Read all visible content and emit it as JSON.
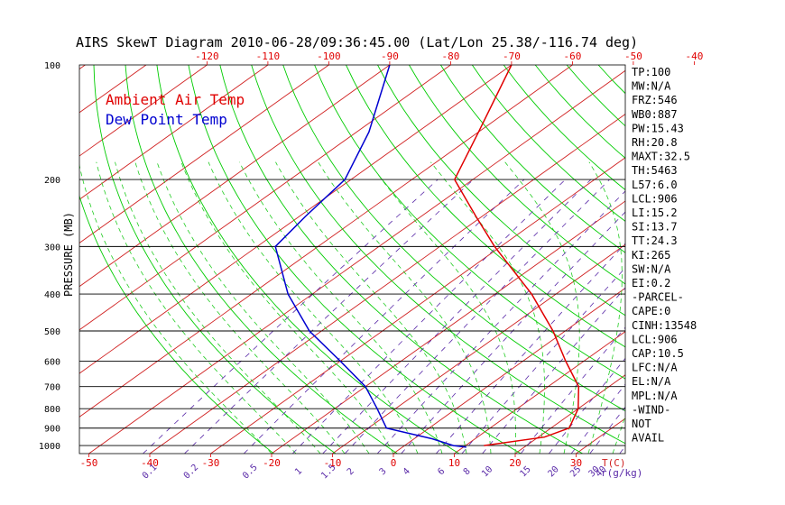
{
  "chart_data": {
    "type": "line",
    "title": "AIRS SkewT Diagram 2010-06-28/09:36:45.00 (Lat/Lon 25.38/-116.74 deg)",
    "ylabel": "PRESSURE (MB)",
    "xlabel_unit": "T(C)",
    "mixing_ratio_unit": "r(g/kg)",
    "y_scale": "log",
    "ylim": [
      1050,
      100
    ],
    "pressure_ticks": [
      100,
      200,
      300,
      400,
      500,
      600,
      700,
      800,
      900,
      1000
    ],
    "bottom_temp_ticks": [
      -50,
      -40,
      -30,
      -20,
      -10,
      0,
      10,
      20,
      30
    ],
    "top_temp_ticks": [
      -120,
      -110,
      -100,
      -90,
      -80,
      -70,
      -60,
      -50,
      -40
    ],
    "mixing_ratio_labels": [
      "0.1",
      "0.2",
      "0.5",
      "1",
      "1.5",
      "2",
      "3",
      "4",
      "6",
      "8",
      "10",
      "15",
      "20",
      "25",
      "30",
      "40"
    ],
    "legend_placement": "top-left",
    "colors": {
      "temp": "#e00000",
      "dewpoint": "#0000d0",
      "isotherm": "#d02020",
      "dry_adiabat": "#00cc00",
      "moist_adiabat": "#22cc22",
      "mixing_ratio": "#5a2aa8",
      "isobar": "#000000",
      "axis_text": "#e00000"
    },
    "series": [
      {
        "name": "Ambient Air Temp",
        "values": [
          {
            "p": 1000,
            "t": 13
          },
          {
            "p": 950,
            "t": 21
          },
          {
            "p": 900,
            "t": 23
          },
          {
            "p": 800,
            "t": 20
          },
          {
            "p": 700,
            "t": 15
          },
          {
            "p": 600,
            "t": 7
          },
          {
            "p": 500,
            "t": -2
          },
          {
            "p": 400,
            "t": -14
          },
          {
            "p": 300,
            "t": -31
          },
          {
            "p": 250,
            "t": -41
          },
          {
            "p": 200,
            "t": -53
          },
          {
            "p": 150,
            "t": -60
          },
          {
            "p": 100,
            "t": -70
          }
        ]
      },
      {
        "name": "Dew Point Temp",
        "values": [
          {
            "p": 1010,
            "t": 10.5
          },
          {
            "p": 1000,
            "t": 8
          },
          {
            "p": 960,
            "t": 3
          },
          {
            "p": 900,
            "t": -7
          },
          {
            "p": 800,
            "t": -13
          },
          {
            "p": 700,
            "t": -20
          },
          {
            "p": 600,
            "t": -30
          },
          {
            "p": 500,
            "t": -42
          },
          {
            "p": 400,
            "t": -54
          },
          {
            "p": 300,
            "t": -67
          },
          {
            "p": 250,
            "t": -69
          },
          {
            "p": 200,
            "t": -71
          },
          {
            "p": 150,
            "t": -78
          },
          {
            "p": 100,
            "t": -90
          }
        ]
      }
    ]
  },
  "stats": [
    "TP:100",
    "MW:N/A",
    "FRZ:546",
    "WB0:887",
    "PW:15.43",
    "RH:20.8",
    "MAXT:32.5",
    "TH:5463",
    "L57:6.0",
    "LCL:906",
    "LI:15.2",
    "SI:13.7",
    "TT:24.3",
    "KI:265",
    "SW:N/A",
    "EI:0.2",
    "-PARCEL-",
    "CAPE:0",
    "CINH:13548",
    "LCL:906",
    "CAP:10.5",
    "LFC:N/A",
    "EL:N/A",
    "MPL:N/A",
    "-WIND-",
    "NOT",
    "AVAIL"
  ]
}
